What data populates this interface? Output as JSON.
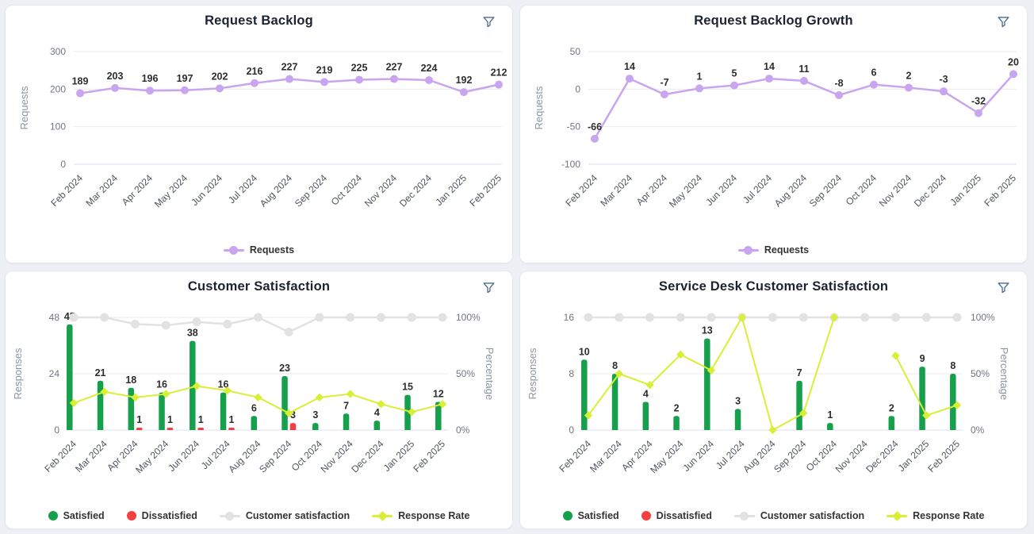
{
  "page": {
    "background": "#edf1f6"
  },
  "icons": {
    "filter": {
      "name": "funnel-icon",
      "color": "#4e6b8c"
    }
  },
  "chart_data": [
    {
      "type": "line",
      "title": "Request Backlog",
      "ylabel": "Requests",
      "yticks": [
        300,
        200,
        100,
        0
      ],
      "ylim": [
        0,
        300
      ],
      "legend_position": "bottom",
      "categories": [
        "Feb 2024",
        "Mar 2024",
        "Apr 2024",
        "May 2024",
        "Jun 2024",
        "Jul 2024",
        "Aug 2024",
        "Sep 2024",
        "Oct 2024",
        "Nov 2024",
        "Dec 2024",
        "Jan 2025",
        "Feb 2025"
      ],
      "series": [
        {
          "name": "Requests",
          "color": "#c9a5ef",
          "values": [
            189,
            203,
            196,
            197,
            202,
            216,
            227,
            219,
            225,
            227,
            224,
            192,
            212
          ]
        }
      ],
      "legend": [
        {
          "label": "Requests",
          "marker": "line-circle",
          "color": "#c9a5ef"
        }
      ]
    },
    {
      "type": "line",
      "title": "Request Backlog Growth",
      "ylabel": "Requests",
      "yticks": [
        50,
        0,
        -50,
        -100
      ],
      "ylim": [
        -100,
        50
      ],
      "legend_position": "bottom",
      "categories": [
        "Feb 2024",
        "Mar 2024",
        "Apr 2024",
        "May 2024",
        "Jun 2024",
        "Jul 2024",
        "Aug 2024",
        "Sep 2024",
        "Oct 2024",
        "Nov 2024",
        "Dec 2024",
        "Jan 2025",
        "Feb 2025"
      ],
      "series": [
        {
          "name": "Requests",
          "color": "#c9a5ef",
          "values": [
            -66,
            14,
            -7,
            1,
            5,
            14,
            11,
            -8,
            6,
            2,
            -3,
            -32,
            20
          ]
        }
      ],
      "legend": [
        {
          "label": "Requests",
          "marker": "line-circle",
          "color": "#c9a5ef"
        }
      ]
    },
    {
      "type": "combo",
      "title": "Customer Satisfaction",
      "ylabel_left": "Responses",
      "ylabel_right": "Percentage",
      "yticks_left": [
        48,
        24,
        0
      ],
      "ylim_left": [
        0,
        48
      ],
      "yticks_right": [
        "100%",
        "50%",
        "0%"
      ],
      "ylim_right": [
        0,
        100
      ],
      "legend_position": "bottom",
      "categories": [
        "Feb 2024",
        "Mar 2024",
        "Apr 2024",
        "May 2024",
        "Jun 2024",
        "Jul 2024",
        "Aug 2024",
        "Sep 2024",
        "Oct 2024",
        "Nov 2024",
        "Dec 2024",
        "Jan 2025",
        "Feb 2025"
      ],
      "bar_series": [
        {
          "name": "Satisfied",
          "color": "#17a04c",
          "axis": "left",
          "values": [
            45,
            21,
            18,
            16,
            38,
            16,
            6,
            23,
            3,
            7,
            4,
            15,
            12
          ]
        },
        {
          "name": "Dissatisfied",
          "color": "#f33f3f",
          "axis": "left",
          "values": [
            0,
            0,
            1,
            1,
            1,
            1,
            0,
            3,
            0,
            0,
            0,
            0,
            0
          ]
        }
      ],
      "line_series": [
        {
          "name": "Customer satisfaction",
          "color": "#e2e2e2",
          "marker": "circle",
          "axis": "right",
          "values": [
            100,
            100,
            94,
            93,
            96,
            94,
            100,
            87,
            100,
            100,
            100,
            100,
            100
          ]
        },
        {
          "name": "Response Rate",
          "color": "#d9ef35",
          "marker": "diamond",
          "axis": "right",
          "values": [
            24,
            34,
            29,
            32,
            39,
            35,
            29,
            15,
            29,
            32,
            23,
            16,
            23
          ]
        }
      ],
      "legend": [
        {
          "label": "Satisfied",
          "marker": "circle",
          "color": "#17a04c"
        },
        {
          "label": "Dissatisfied",
          "marker": "circle",
          "color": "#f33f3f"
        },
        {
          "label": "Customer satisfaction",
          "marker": "line-circle",
          "color": "#e2e2e2"
        },
        {
          "label": "Response Rate",
          "marker": "line-diamond",
          "color": "#d9ef35"
        }
      ]
    },
    {
      "type": "combo",
      "title": "Service Desk Customer Satisfaction",
      "ylabel_left": "Responses",
      "ylabel_right": "Percentage",
      "yticks_left": [
        16,
        8,
        0
      ],
      "ylim_left": [
        0,
        16
      ],
      "yticks_right": [
        "100%",
        "50%",
        "0%"
      ],
      "ylim_right": [
        0,
        100
      ],
      "legend_position": "bottom",
      "categories": [
        "Feb 2024",
        "Mar 2024",
        "Apr 2024",
        "May 2024",
        "Jun 2024",
        "Jul 2024",
        "Aug 2024",
        "Sep 2024",
        "Oct 2024",
        "Nov 2024",
        "Dec 2024",
        "Jan 2025",
        "Feb 2025"
      ],
      "bar_series": [
        {
          "name": "Satisfied",
          "color": "#17a04c",
          "axis": "left",
          "values": [
            10,
            8,
            4,
            2,
            13,
            3,
            null,
            7,
            1,
            null,
            2,
            9,
            8
          ]
        },
        {
          "name": "Dissatisfied",
          "color": "#f33f3f",
          "axis": "left",
          "values": [
            0,
            0,
            0,
            0,
            0,
            0,
            0,
            0,
            0,
            0,
            0,
            0,
            0
          ]
        }
      ],
      "line_series": [
        {
          "name": "Customer satisfaction",
          "color": "#e2e2e2",
          "marker": "circle",
          "axis": "right",
          "values": [
            100,
            100,
            100,
            100,
            100,
            100,
            100,
            100,
            100,
            100,
            100,
            100,
            100
          ]
        },
        {
          "name": "Response Rate",
          "color": "#d9ef35",
          "marker": "diamond",
          "axis": "right",
          "values": [
            13,
            50,
            40,
            67,
            53,
            100,
            0,
            15,
            100,
            null,
            66,
            13,
            22
          ]
        }
      ],
      "legend": [
        {
          "label": "Satisfied",
          "marker": "circle",
          "color": "#17a04c"
        },
        {
          "label": "Dissatisfied",
          "marker": "circle",
          "color": "#f33f3f"
        },
        {
          "label": "Customer satisfaction",
          "marker": "line-circle",
          "color": "#e2e2e2"
        },
        {
          "label": "Response Rate",
          "marker": "line-diamond",
          "color": "#d9ef35"
        }
      ]
    }
  ]
}
